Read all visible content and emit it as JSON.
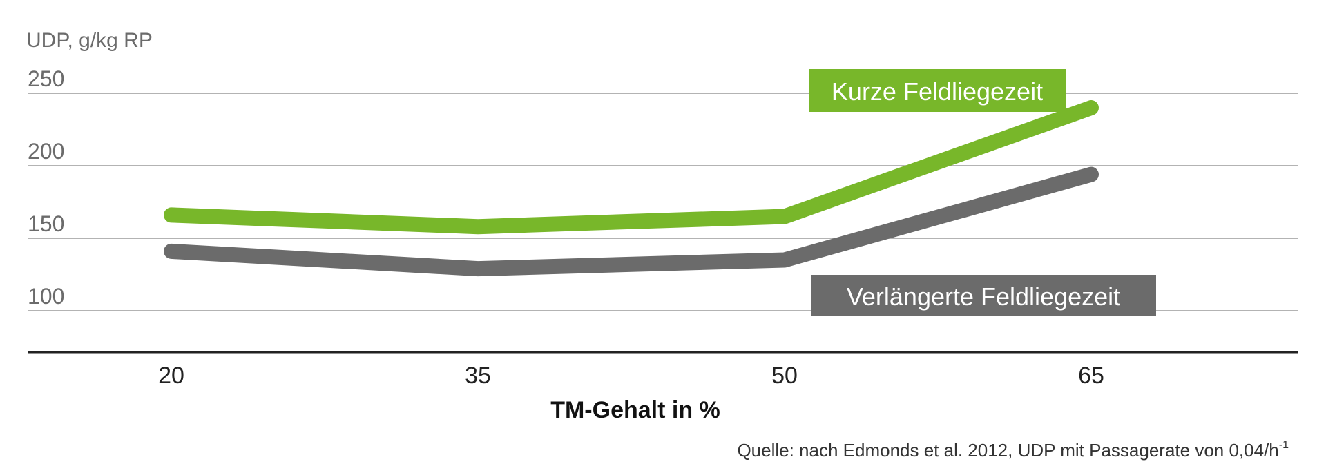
{
  "chart_data": {
    "type": "line",
    "ylabel": "UDP, g/kg RP",
    "xlabel": "TM-Gehalt in %",
    "x": [
      20,
      35,
      50,
      65
    ],
    "x_tick_labels": [
      "20",
      "35",
      "50",
      "65"
    ],
    "y_ticks": [
      100,
      150,
      200,
      250
    ],
    "y_tick_labels": [
      "100",
      "150",
      "200",
      "250"
    ],
    "ylim": [
      70,
      250
    ],
    "grid": true,
    "series": [
      {
        "name": "Kurze Feldliegezeit",
        "values": [
          166,
          158,
          165,
          240
        ],
        "color": "#78b72a"
      },
      {
        "name": "Verlängerte Feldliegezeit",
        "values": [
          141,
          129,
          135,
          194
        ],
        "color": "#6b6b6b"
      }
    ],
    "source": {
      "text": "Quelle: nach Edmonds et al. 2012, UDP mit Passagerate von 0,04/h",
      "superscript": "-1"
    }
  }
}
